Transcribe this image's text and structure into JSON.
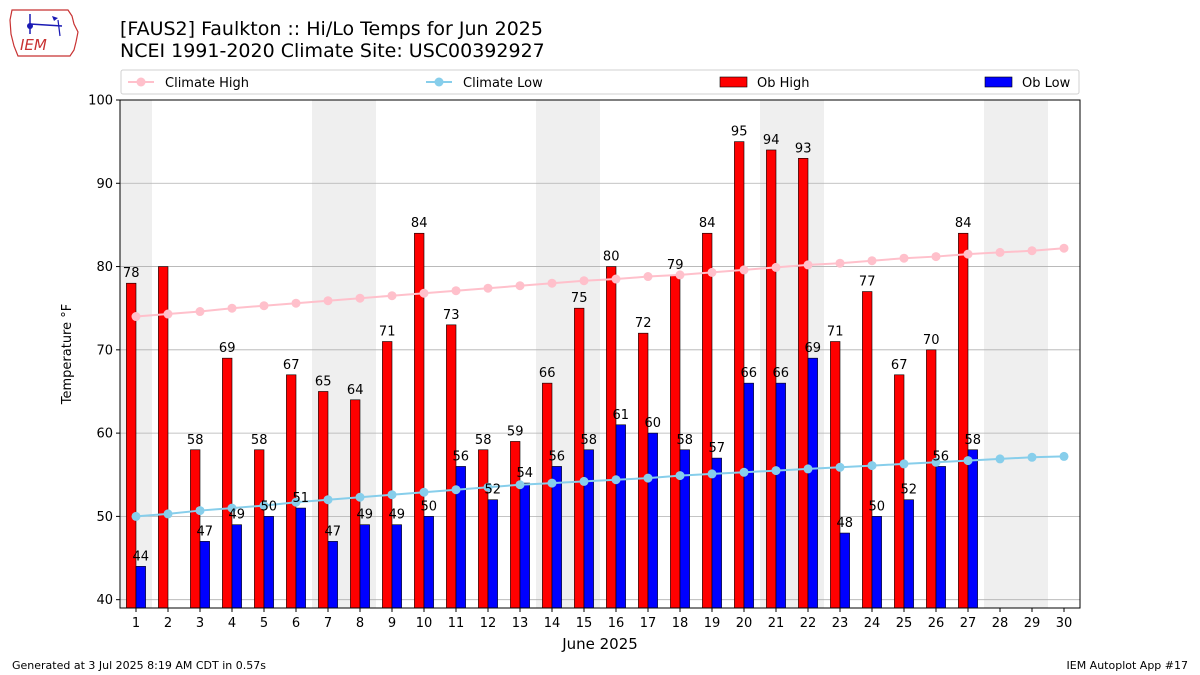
{
  "header": {
    "title_line1": "[FAUS2] Faulkton :: Hi/Lo Temps for Jun 2025",
    "title_line2": "NCEI 1991-2020 Climate Site: USC00392927",
    "logo_text": "IEM"
  },
  "footer": {
    "generated": "Generated at 3 Jul 2025 8:19 AM CDT in 0.57s",
    "app": "IEM Autoplot App #17"
  },
  "colors": {
    "ob_high": "#ff0000",
    "ob_low": "#0000ff",
    "climate_high": "#ffc0cb",
    "climate_low": "#87ceeb",
    "weekend_band": "#efefef",
    "grid": "#b0b0b0"
  },
  "chart_data": {
    "type": "bar",
    "title": "[FAUS2] Faulkton :: Hi/Lo Temps for Jun 2025",
    "xlabel": "June 2025",
    "ylabel": "Temperature °F",
    "ylim": [
      39,
      100
    ],
    "yticks": [
      40,
      50,
      60,
      70,
      80,
      90,
      100
    ],
    "grid": "horizontal",
    "legend_position": "top",
    "categories": [
      1,
      2,
      3,
      4,
      5,
      6,
      7,
      8,
      9,
      10,
      11,
      12,
      13,
      14,
      15,
      16,
      17,
      18,
      19,
      20,
      21,
      22,
      23,
      24,
      25,
      26,
      27,
      28,
      29,
      30
    ],
    "weekend_days": [
      1,
      7,
      8,
      14,
      15,
      21,
      22,
      28,
      29
    ],
    "legend": [
      "Climate High",
      "Climate Low",
      "Ob High",
      "Ob Low"
    ],
    "series": [
      {
        "name": "Ob High",
        "kind": "bar",
        "values": [
          78,
          80,
          58,
          69,
          58,
          67,
          65,
          64,
          71,
          84,
          73,
          58,
          59,
          66,
          75,
          80,
          72,
          79,
          84,
          95,
          94,
          93,
          71,
          77,
          67,
          70,
          84,
          null,
          null,
          null
        ],
        "labels": [
          "78",
          "",
          "58",
          "69",
          "58",
          "67",
          "65",
          "64",
          "71",
          "84",
          "73",
          "58",
          "59",
          "66",
          "75",
          "80",
          "72",
          "79",
          "84",
          "95",
          "94",
          "93",
          "71",
          "77",
          "67",
          "70",
          "84",
          "",
          "",
          ""
        ]
      },
      {
        "name": "Ob Low",
        "kind": "bar",
        "values": [
          44,
          null,
          47,
          49,
          50,
          51,
          47,
          49,
          49,
          50,
          56,
          52,
          54,
          56,
          58,
          61,
          60,
          58,
          57,
          66,
          66,
          69,
          48,
          50,
          52,
          56,
          58,
          null,
          null,
          null
        ],
        "labels": [
          "44",
          "",
          "47",
          "49",
          "50",
          "51",
          "47",
          "49",
          "49",
          "50",
          "56",
          "52",
          "54",
          "56",
          "58",
          "61",
          "60",
          "58",
          "57",
          "66",
          "66",
          "69",
          "48",
          "50",
          "52",
          "56",
          "58",
          "",
          "",
          ""
        ]
      },
      {
        "name": "Climate High",
        "kind": "line",
        "values": [
          74.0,
          74.3,
          74.6,
          75.0,
          75.3,
          75.6,
          75.9,
          76.2,
          76.5,
          76.8,
          77.1,
          77.4,
          77.7,
          78.0,
          78.3,
          78.5,
          78.8,
          79.0,
          79.3,
          79.6,
          79.9,
          80.2,
          80.4,
          80.7,
          81.0,
          81.2,
          81.5,
          81.7,
          81.9,
          82.2
        ]
      },
      {
        "name": "Climate Low",
        "kind": "line",
        "values": [
          50.0,
          50.3,
          50.7,
          51.0,
          51.3,
          51.7,
          52.0,
          52.3,
          52.6,
          52.9,
          53.2,
          53.5,
          53.8,
          54.0,
          54.2,
          54.4,
          54.6,
          54.9,
          55.1,
          55.3,
          55.5,
          55.7,
          55.9,
          56.1,
          56.3,
          56.5,
          56.7,
          56.9,
          57.1,
          57.2
        ]
      }
    ]
  }
}
